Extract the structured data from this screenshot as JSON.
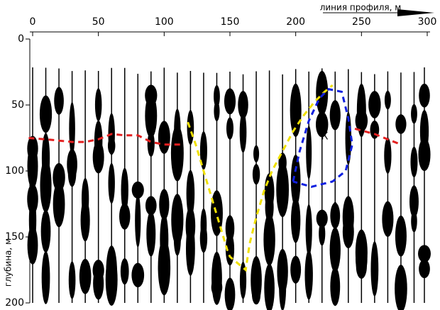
{
  "chart_data": {
    "type": "line",
    "x_label": "линия профиля, м",
    "y_label": "глубина, м",
    "xlim": [
      0,
      300
    ],
    "ylim": [
      200,
      0
    ],
    "xticks": [
      0,
      50,
      100,
      150,
      200,
      250,
      300
    ],
    "yticks": [
      0,
      50,
      100,
      150,
      200
    ],
    "annotation": {
      "text": "К",
      "x": 222,
      "y": 74,
      "color": "#ff0000"
    },
    "series": [
      {
        "color": "#e32020",
        "x": [
          -3,
          10,
          20,
          30,
          40,
          50,
          60,
          70,
          80,
          90,
          100,
          115,
          180,
          245,
          260,
          270,
          280
        ],
        "values": [
          75,
          76,
          77,
          78,
          78,
          76,
          72,
          73,
          73,
          78,
          80,
          80,
          null,
          68,
          72,
          76,
          80
        ]
      },
      {
        "color": "#f0e000",
        "x": [
          118,
          124,
          130,
          136,
          142,
          148,
          150,
          162,
          165,
          170,
          176,
          182,
          190,
          198,
          206,
          214,
          222,
          228
        ],
        "values": [
          63,
          80,
          100,
          120,
          140,
          160,
          165,
          175,
          155,
          135,
          115,
          100,
          85,
          70,
          58,
          48,
          40,
          35
        ]
      },
      {
        "color": "#1020e0",
        "x": [
          198,
          203,
          210,
          218,
          225,
          235,
          240,
          243,
          238,
          228,
          212,
          198
        ],
        "values": [
          108,
          85,
          62,
          45,
          38,
          40,
          60,
          80,
          100,
          108,
          112,
          108
        ]
      }
    ]
  }
}
